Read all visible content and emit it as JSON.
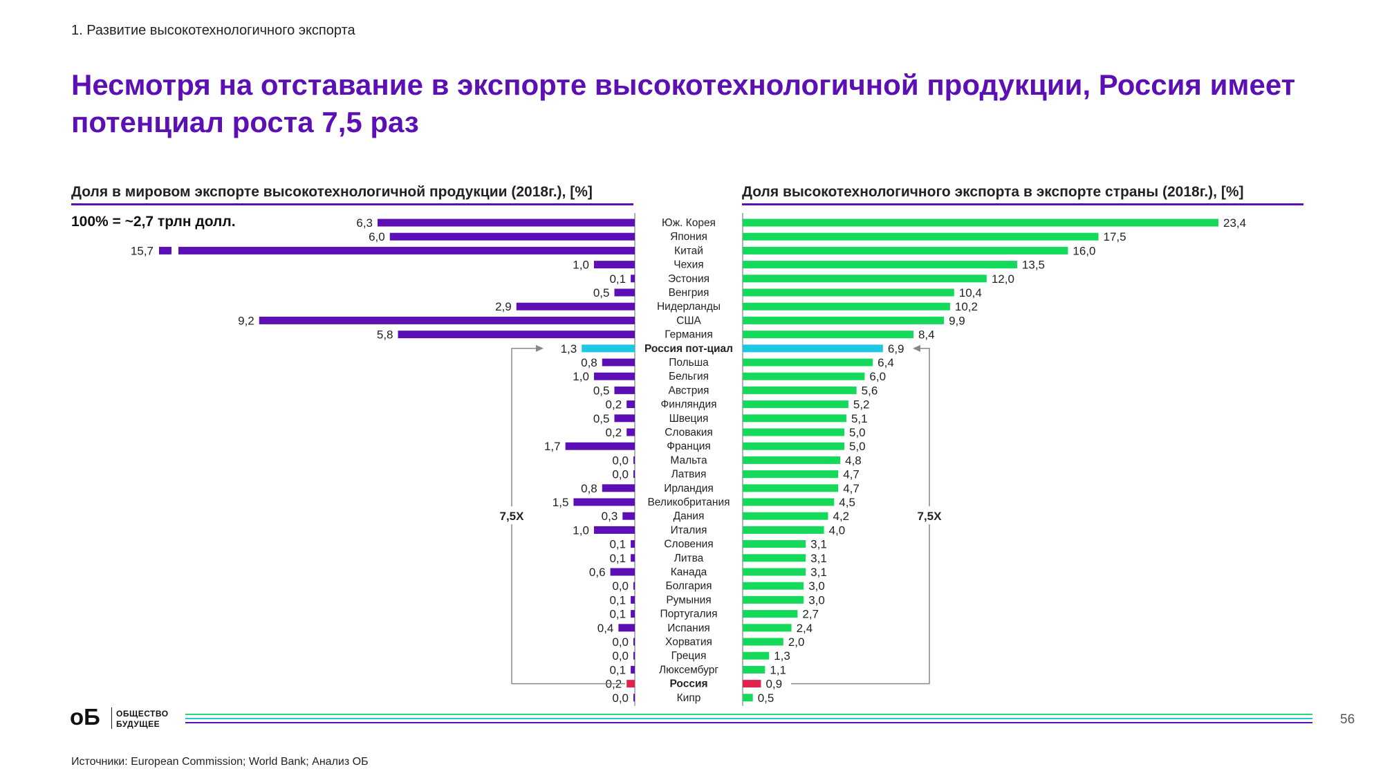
{
  "section_label": "1. Развитие высокотехнологичного экспорта",
  "headline": "Несмотря на отставание в экспорте высокотехнологичной продукции, Россия имеет потенциал роста 7,5 раз",
  "footer": {
    "logo_mark": "оБ",
    "logo_word1": "ОБЩЕСТВО",
    "logo_word2": "БУДУЩЕЕ",
    "page_number": "56",
    "sources": "Источники: European Commission; World Bank; Анализ ОБ"
  },
  "colors": {
    "brand_purple": "#5b0fb5",
    "green": "#14d95a",
    "cyan": "#1ec8e3",
    "russia_red": "#e0234e",
    "bracket_gray": "#888888"
  },
  "chart_data": [
    {
      "type": "bar",
      "orientation": "horizontal",
      "direction": "leftward",
      "title": "Доля в мировом экспорте высокотехнологичной продукции (2018г.), [%]",
      "note": "100% = ~2,7 трлн долл.",
      "categories": [
        "Юж. Корея",
        "Япония",
        "Китай",
        "Чехия",
        "Эстония",
        "Венгрия",
        "Нидерланды",
        "США",
        "Германия",
        "Россия пот-циал",
        "Польша",
        "Бельгия",
        "Австрия",
        "Финляндия",
        "Швеция",
        "Словакия",
        "Франция",
        "Мальта",
        "Латвия",
        "Ирландия",
        "Великобритания",
        "Дания",
        "Италия",
        "Словения",
        "Литва",
        "Канада",
        "Болгария",
        "Румыния",
        "Португалия",
        "Испания",
        "Хорватия",
        "Греция",
        "Люксембург",
        "Россия",
        "Кипр"
      ],
      "values": [
        6.3,
        6.0,
        15.7,
        1.0,
        0.1,
        0.5,
        2.9,
        9.2,
        5.8,
        1.3,
        0.8,
        1.0,
        0.5,
        0.2,
        0.5,
        0.2,
        1.7,
        0.0,
        0.0,
        0.8,
        1.5,
        0.3,
        1.0,
        0.1,
        0.1,
        0.6,
        0.0,
        0.1,
        0.1,
        0.4,
        0.0,
        0.0,
        0.1,
        0.2,
        0.0
      ],
      "labels": [
        "6,3",
        "6,0",
        "15,7",
        "1,0",
        "0,1",
        "0,5",
        "2,9",
        "9,2",
        "5,8",
        "1,3",
        "0,8",
        "1,0",
        "0,5",
        "0,2",
        "0,5",
        "0,2",
        "1,7",
        "0,0",
        "0,0",
        "0,8",
        "1,5",
        "0,3",
        "1,0",
        "0,1",
        "0,1",
        "0,6",
        "0,0",
        "0,1",
        "0,1",
        "0,4",
        "0,0",
        "0,0",
        "0,1",
        "0,2",
        "0,0"
      ],
      "axis_break_category": "Китай",
      "highlight": {
        "Россия пот-циал": "cyan",
        "Россия": "red"
      },
      "annotation": "7,5X"
    },
    {
      "type": "bar",
      "orientation": "horizontal",
      "direction": "rightward",
      "title": "Доля высокотехнологичного экспорта в экспорте страны (2018г.), [%]",
      "categories": [
        "Юж. Корея",
        "Япония",
        "Китай",
        "Чехия",
        "Эстония",
        "Венгрия",
        "Нидерланды",
        "США",
        "Германия",
        "Россия пот-циал",
        "Польша",
        "Бельгия",
        "Австрия",
        "Финляндия",
        "Швеция",
        "Словакия",
        "Франция",
        "Мальта",
        "Латвия",
        "Ирландия",
        "Великобритания",
        "Дания",
        "Италия",
        "Словения",
        "Литва",
        "Канада",
        "Болгария",
        "Румыния",
        "Португалия",
        "Испания",
        "Хорватия",
        "Греция",
        "Люксембург",
        "Россия",
        "Кипр"
      ],
      "values": [
        23.4,
        17.5,
        16.0,
        13.5,
        12.0,
        10.4,
        10.2,
        9.9,
        8.4,
        6.9,
        6.4,
        6.0,
        5.6,
        5.2,
        5.1,
        5.0,
        5.0,
        4.8,
        4.7,
        4.7,
        4.5,
        4.2,
        4.0,
        3.1,
        3.1,
        3.1,
        3.0,
        3.0,
        2.7,
        2.4,
        2.0,
        1.3,
        1.1,
        0.9,
        0.5
      ],
      "labels": [
        "23,4",
        "17,5",
        "16,0",
        "13,5",
        "12,0",
        "10,4",
        "10,2",
        "9,9",
        "8,4",
        "6,9",
        "6,4",
        "6,0",
        "5,6",
        "5,2",
        "5,1",
        "5,0",
        "5,0",
        "4,8",
        "4,7",
        "4,7",
        "4,5",
        "4,2",
        "4,0",
        "3,1",
        "3,1",
        "3,1",
        "3,0",
        "3,0",
        "2,7",
        "2,4",
        "2,0",
        "1,3",
        "1,1",
        "0,9",
        "0,5"
      ],
      "highlight": {
        "Россия пот-циал": "cyan",
        "Россия": "red"
      },
      "annotation": "7,5X"
    }
  ]
}
